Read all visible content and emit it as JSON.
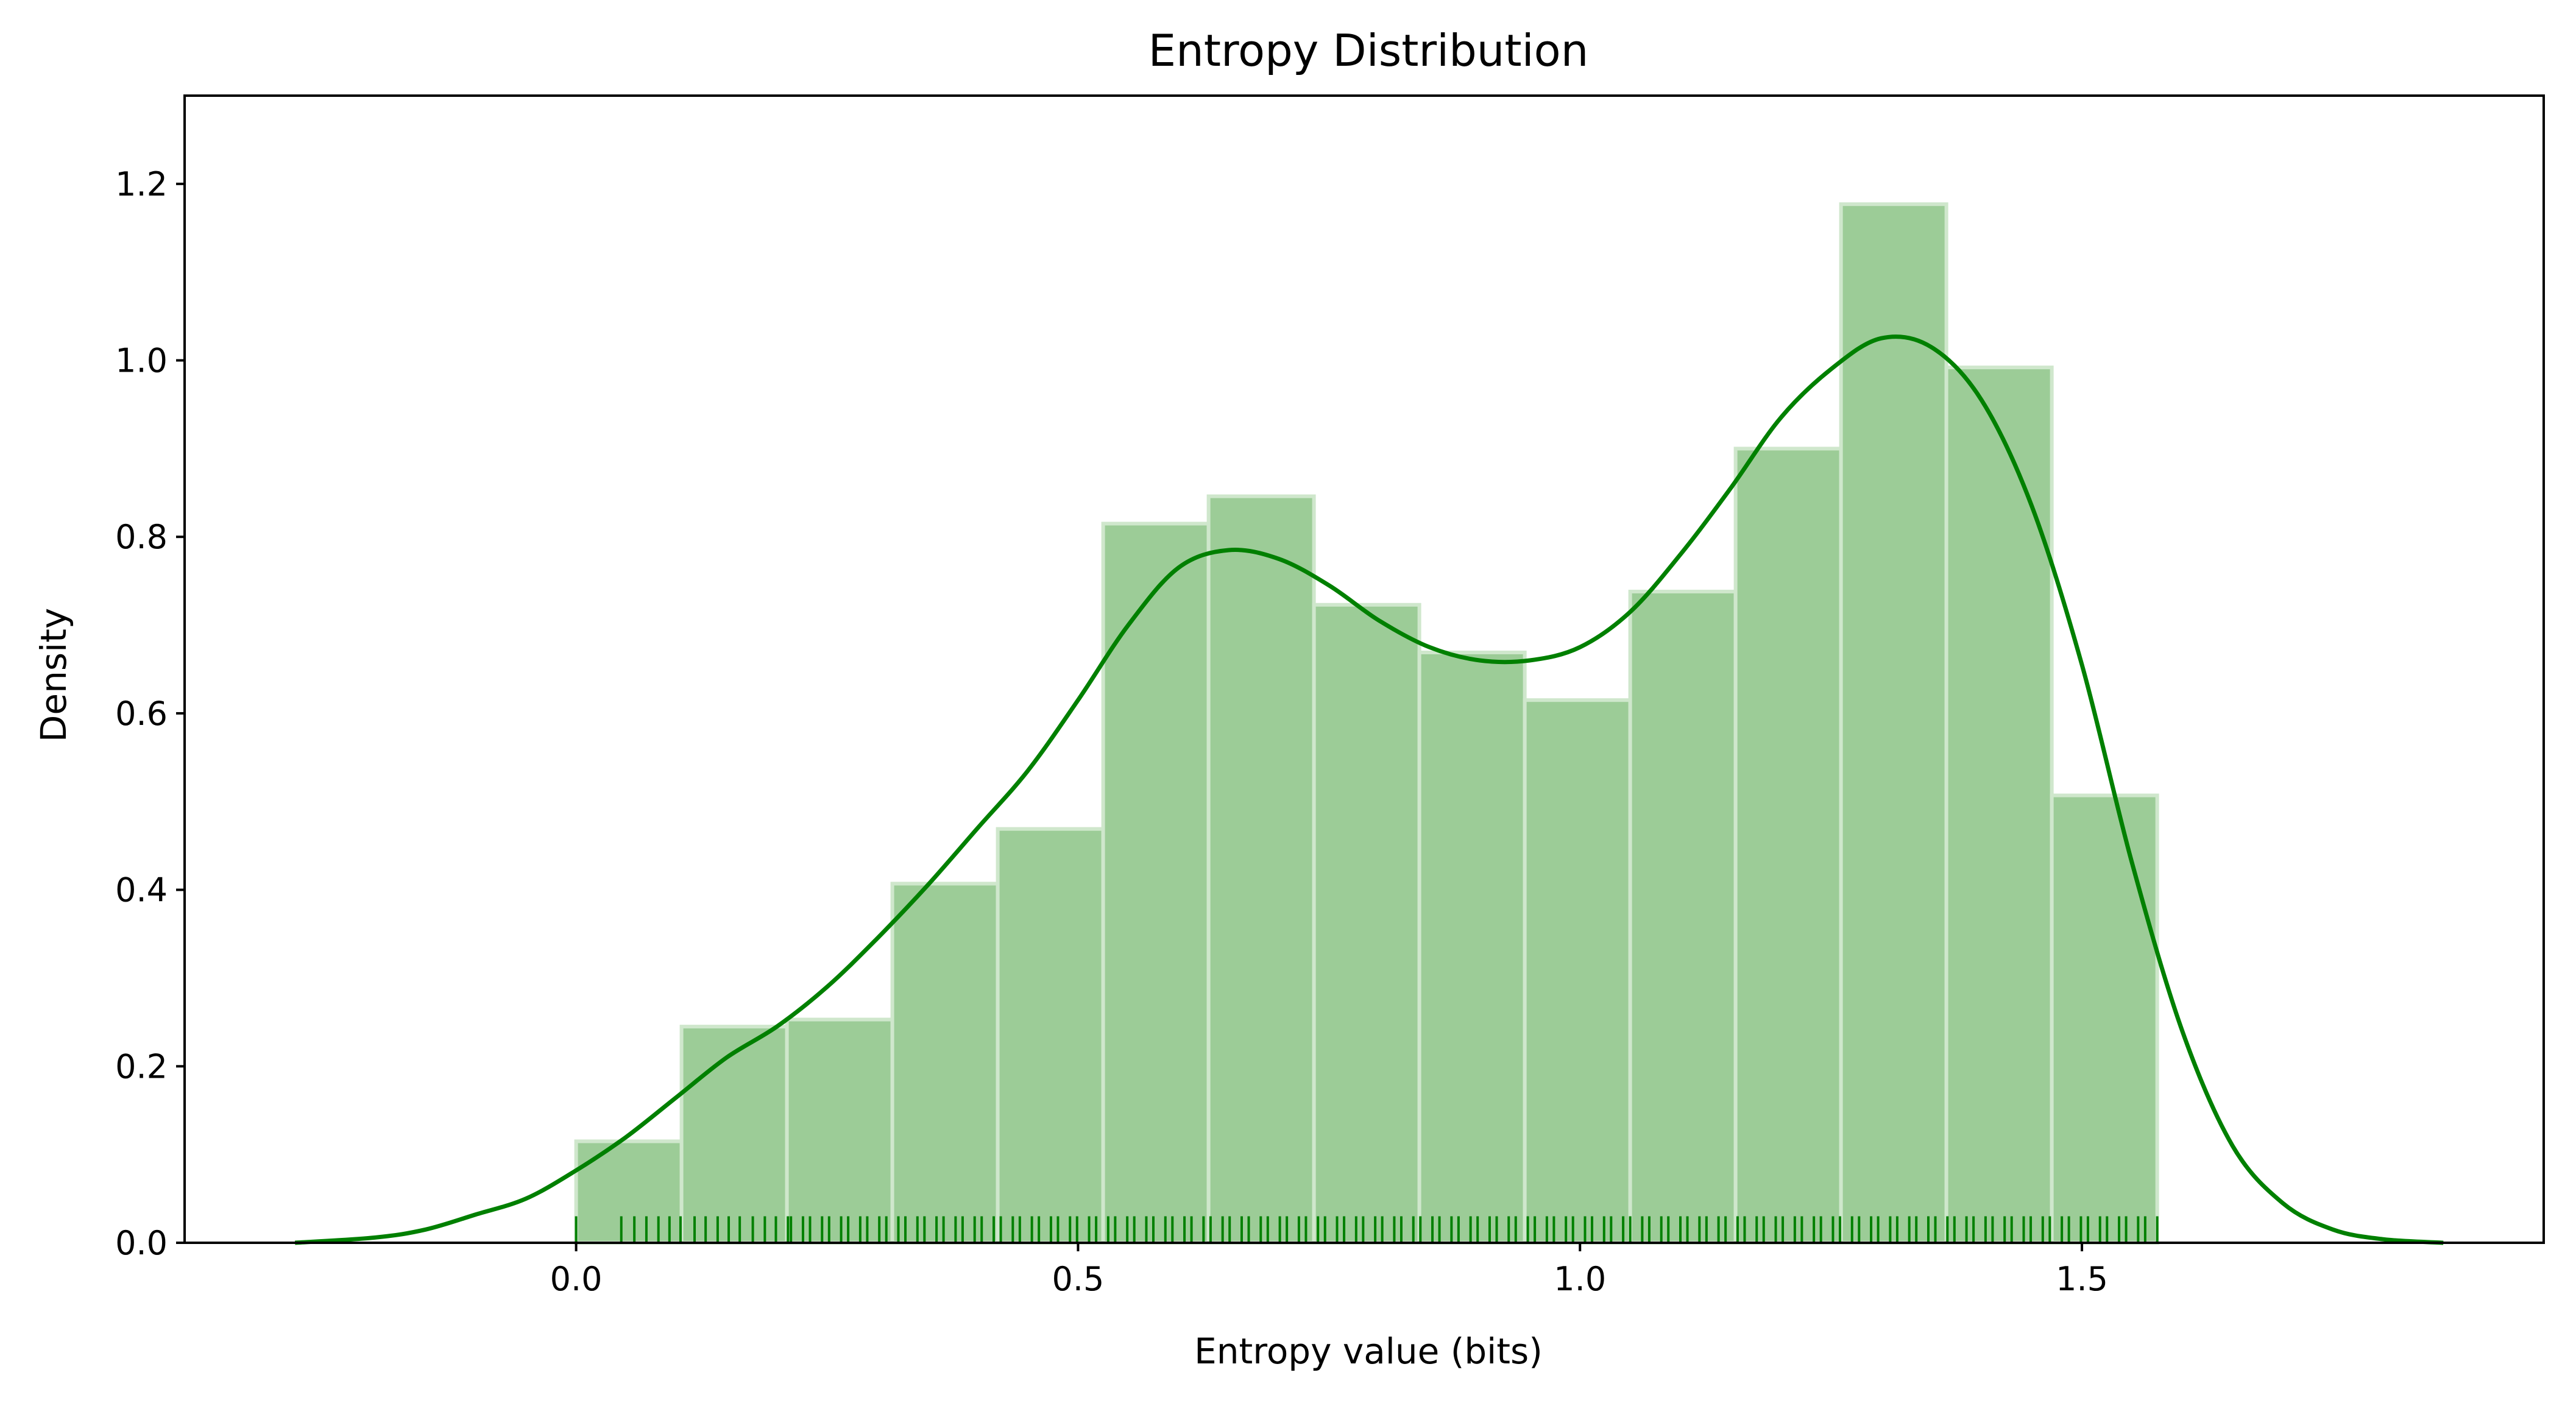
{
  "chart_data": {
    "type": "bar",
    "title": "Entropy Distribution",
    "xlabel": "Entropy value (bits)",
    "ylabel": "Density",
    "xlim": [
      -0.39,
      1.96
    ],
    "ylim": [
      0.0,
      1.3
    ],
    "x_ticks": [
      0.0,
      0.5,
      1.0,
      1.5
    ],
    "x_tick_labels": [
      "0.0",
      "0.5",
      "1.0",
      "1.5"
    ],
    "y_ticks": [
      0.0,
      0.2,
      0.4,
      0.6,
      0.8,
      1.0,
      1.2
    ],
    "y_tick_labels": [
      "0.0",
      "0.2",
      "0.4",
      "0.6",
      "0.8",
      "1.0",
      "1.2"
    ],
    "grid": false,
    "histogram": {
      "bin_edges": [
        0.0,
        0.105,
        0.21,
        0.315,
        0.42,
        0.525,
        0.63,
        0.735,
        0.84,
        0.945,
        1.05,
        1.155,
        1.26,
        1.365,
        1.47,
        1.575
      ],
      "densities": [
        0.115,
        0.245,
        0.253,
        0.407,
        0.469,
        0.815,
        0.846,
        0.723,
        0.669,
        0.615,
        0.738,
        0.9,
        1.177,
        0.992,
        0.507
      ],
      "color": "#9ccc97",
      "edge_color": "#cfe7cc"
    },
    "kde": {
      "x": [
        -0.28,
        -0.2,
        -0.15,
        -0.1,
        -0.05,
        0.0,
        0.05,
        0.1,
        0.15,
        0.2,
        0.25,
        0.3,
        0.35,
        0.4,
        0.45,
        0.5,
        0.55,
        0.6,
        0.65,
        0.7,
        0.75,
        0.8,
        0.85,
        0.9,
        0.95,
        1.0,
        1.05,
        1.1,
        1.15,
        1.2,
        1.25,
        1.3,
        1.35,
        1.4,
        1.45,
        1.5,
        1.55,
        1.6,
        1.65,
        1.7,
        1.75,
        1.8,
        1.86
      ],
      "y": [
        0.0,
        0.006,
        0.015,
        0.032,
        0.05,
        0.082,
        0.12,
        0.165,
        0.21,
        0.245,
        0.29,
        0.345,
        0.405,
        0.47,
        0.535,
        0.615,
        0.7,
        0.765,
        0.785,
        0.775,
        0.745,
        0.705,
        0.675,
        0.66,
        0.66,
        0.675,
        0.715,
        0.78,
        0.855,
        0.935,
        0.99,
        1.025,
        1.015,
        0.955,
        0.835,
        0.655,
        0.43,
        0.24,
        0.11,
        0.045,
        0.015,
        0.004,
        0.0
      ],
      "color": "#008000"
    },
    "rug": {
      "x": [
        0.0,
        0.045,
        0.058,
        0.07,
        0.082,
        0.093,
        0.104,
        0.118,
        0.129,
        0.141,
        0.152,
        0.163,
        0.176,
        0.188,
        0.199,
        0.211,
        0.214,
        0.226,
        0.233,
        0.245,
        0.252,
        0.264,
        0.271,
        0.283,
        0.29,
        0.302,
        0.309,
        0.321,
        0.328,
        0.34,
        0.347,
        0.359,
        0.366,
        0.378,
        0.385,
        0.397,
        0.404,
        0.416,
        0.423,
        0.435,
        0.442,
        0.454,
        0.461,
        0.473,
        0.48,
        0.492,
        0.499,
        0.511,
        0.518,
        0.53,
        0.537,
        0.549,
        0.556,
        0.568,
        0.575,
        0.587,
        0.594,
        0.606,
        0.613,
        0.625,
        0.632,
        0.644,
        0.651,
        0.663,
        0.67,
        0.682,
        0.689,
        0.701,
        0.708,
        0.72,
        0.727,
        0.739,
        0.746,
        0.758,
        0.765,
        0.777,
        0.784,
        0.796,
        0.803,
        0.815,
        0.822,
        0.834,
        0.841,
        0.853,
        0.86,
        0.872,
        0.879,
        0.891,
        0.898,
        0.91,
        0.917,
        0.929,
        0.936,
        0.948,
        0.955,
        0.967,
        0.974,
        0.986,
        0.993,
        1.005,
        1.012,
        1.024,
        1.031,
        1.043,
        1.05,
        1.062,
        1.069,
        1.081,
        1.088,
        1.1,
        1.107,
        1.119,
        1.126,
        1.138,
        1.145,
        1.157,
        1.164,
        1.176,
        1.183,
        1.195,
        1.202,
        1.214,
        1.221,
        1.233,
        1.24,
        1.252,
        1.259,
        1.271,
        1.278,
        1.29,
        1.297,
        1.309,
        1.316,
        1.328,
        1.335,
        1.347,
        1.354,
        1.366,
        1.373,
        1.385,
        1.392,
        1.404,
        1.411,
        1.423,
        1.43,
        1.442,
        1.449,
        1.461,
        1.468,
        1.48,
        1.487,
        1.499,
        1.506,
        1.518,
        1.525,
        1.537,
        1.544,
        1.556,
        1.563,
        1.575
      ],
      "height": 0.03,
      "color": "#008000"
    }
  }
}
